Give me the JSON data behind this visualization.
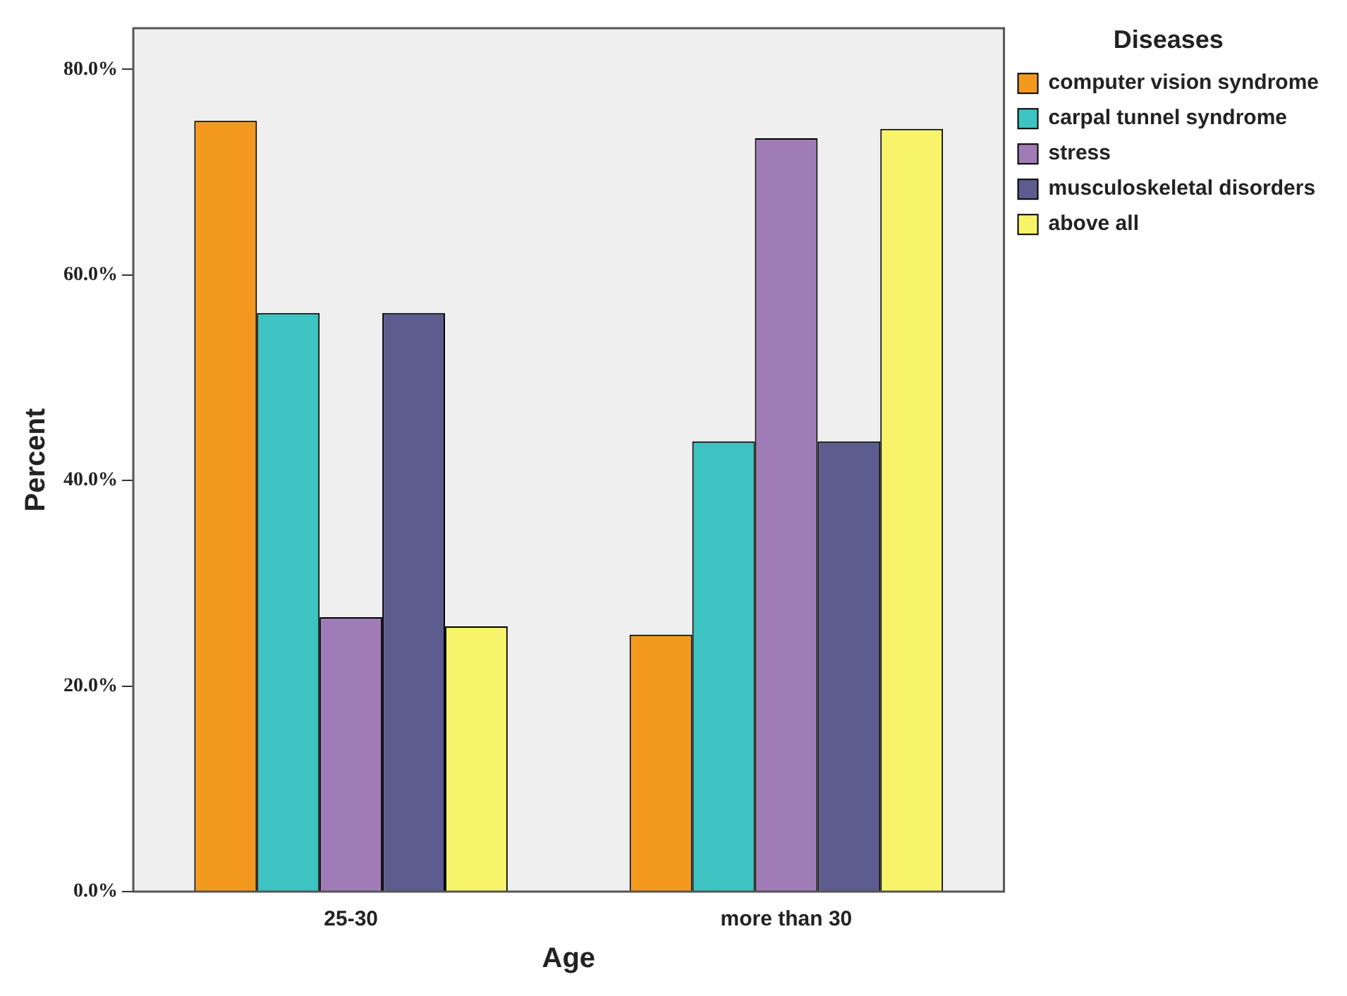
{
  "chart_data": {
    "type": "bar",
    "xlabel": "Age",
    "ylabel": "Percent",
    "legend_title": "Diseases",
    "legend": "right",
    "grid": false,
    "categories": [
      "25-30",
      "more than 30"
    ],
    "ylim": [
      0,
      84
    ],
    "yticks": [
      {
        "value": 0,
        "label": "0.0%"
      },
      {
        "value": 20,
        "label": "20.0%"
      },
      {
        "value": 40,
        "label": "40.0%"
      },
      {
        "value": 60,
        "label": "60.0%"
      },
      {
        "value": 80,
        "label": "80.0%"
      }
    ],
    "series": [
      {
        "name": "computer vision syndrome",
        "color": "#f39a1e",
        "values": [
          75,
          25
        ]
      },
      {
        "name": "carpal tunnel syndrome",
        "color": "#3ec3c3",
        "values": [
          56.3,
          43.8
        ]
      },
      {
        "name": "stress",
        "color": "#a07cb6",
        "values": [
          26.7,
          73.3
        ]
      },
      {
        "name": "musculoskeletal disorders",
        "color": "#5c5c8e",
        "values": [
          56.3,
          43.8
        ]
      },
      {
        "name": "above all",
        "color": "#f8f46a",
        "values": [
          25.8,
          74.2
        ]
      }
    ]
  }
}
